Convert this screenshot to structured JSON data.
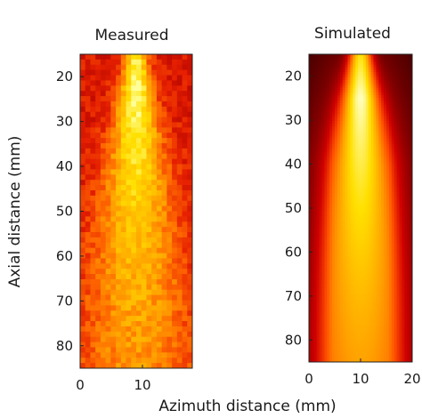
{
  "chart_data": [
    {
      "type": "heatmap",
      "title": "Measured",
      "xlabel": "",
      "ylabel": "Axial distance (mm)",
      "x_ticks": [
        0,
        10
      ],
      "y_ticks": [
        20,
        30,
        40,
        50,
        60,
        70,
        80
      ],
      "xlim": [
        0,
        18
      ],
      "ylim": [
        15,
        85
      ],
      "colormap": [
        "#6a0000",
        "#b00000",
        "#e62000",
        "#ff6a00",
        "#ffb000",
        "#ffe000",
        "#ffff9a"
      ],
      "beam": {
        "center_x": 9,
        "peak_y": 22,
        "peak_value": 1.0
      },
      "noisy": true
    },
    {
      "type": "heatmap",
      "title": "Simulated",
      "xlabel": "Azimuth distance (mm)",
      "ylabel": "",
      "x_ticks": [
        0,
        10,
        20
      ],
      "y_ticks": [
        20,
        30,
        40,
        50,
        60,
        70,
        80
      ],
      "xlim": [
        0,
        20
      ],
      "ylim": [
        15,
        85
      ],
      "colormap": [
        "#2a0000",
        "#800000",
        "#d00000",
        "#ff5000",
        "#ffa000",
        "#ffe000",
        "#ffffc0"
      ],
      "beam": {
        "center_x": 10,
        "peak_y": 25,
        "peak_value": 1.0
      },
      "noisy": false
    }
  ],
  "shared": {
    "ylabel": "Axial distance (mm)",
    "xlabel": "Azimuth distance (mm)"
  }
}
